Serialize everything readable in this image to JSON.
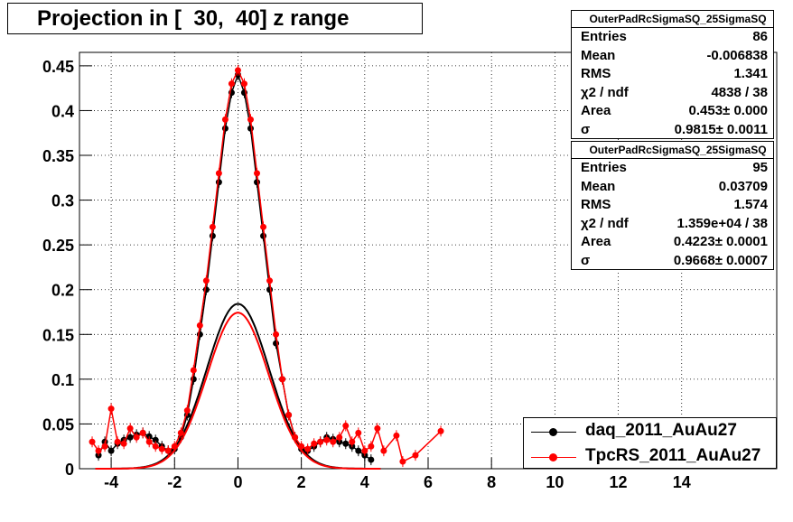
{
  "title": "Projection in [  30,  40] z range",
  "stats_boxes": [
    {
      "name": "OuterPadRcSigmaSQ_25SigmaSQ",
      "rows": [
        {
          "key": "Entries",
          "value": "86"
        },
        {
          "key": "Mean",
          "value": "-0.006838"
        },
        {
          "key": "RMS",
          "value": "1.341"
        },
        {
          "key": "χ2 / ndf",
          "value": "4838 / 38"
        },
        {
          "key": "Area",
          "value": "0.453± 0.000"
        },
        {
          "key": "σ",
          "value": "0.9815± 0.0011"
        }
      ]
    },
    {
      "name": "OuterPadRcSigmaSQ_25SigmaSQ",
      "rows": [
        {
          "key": "Entries",
          "value": "95"
        },
        {
          "key": "Mean",
          "value": "0.03709"
        },
        {
          "key": "RMS",
          "value": "1.574"
        },
        {
          "key": "χ2 / ndf",
          "value": "1.359e+04 / 38"
        },
        {
          "key": "Area",
          "value": "0.4223± 0.0001"
        },
        {
          "key": "σ",
          "value": "0.9668± 0.0007"
        }
      ]
    }
  ],
  "legend": [
    {
      "label": "daq_2011_AuAu27",
      "color": "#000000"
    },
    {
      "label": "TpcRS_2011_AuAu27",
      "color": "#ff0000"
    }
  ],
  "chart_data": {
    "type": "scatter",
    "title": "Projection in [  30,  40] z range",
    "xlabel": "",
    "ylabel": "",
    "xlim": [
      -5,
      17
    ],
    "ylim": [
      0,
      0.465
    ],
    "grid": true,
    "legend_position": "bottom-right",
    "x_ticks": [
      -4,
      -2,
      0,
      2,
      4,
      6,
      8,
      10,
      12,
      14
    ],
    "y_ticks": [
      0,
      0.05,
      0.1,
      0.15,
      0.2,
      0.25,
      0.3,
      0.35,
      0.4,
      0.45
    ],
    "x_tick_labels": [
      "-4",
      "-2",
      "0",
      "2",
      "4",
      "6",
      "8",
      "10",
      "12",
      "14"
    ],
    "y_tick_labels": [
      "0",
      "0.05",
      "0.1",
      "0.15",
      "0.2",
      "0.25",
      "0.3",
      "0.35",
      "0.4",
      "0.45"
    ],
    "series": [
      {
        "name": "daq_2011_AuAu27",
        "color": "#000000",
        "x": [
          -4.4,
          -4.2,
          -4.0,
          -3.8,
          -3.6,
          -3.4,
          -3.2,
          -3.0,
          -2.8,
          -2.6,
          -2.4,
          -2.2,
          -2.0,
          -1.8,
          -1.6,
          -1.4,
          -1.2,
          -1.0,
          -0.8,
          -0.6,
          -0.4,
          -0.2,
          0.0,
          0.2,
          0.4,
          0.6,
          0.8,
          1.0,
          1.2,
          1.4,
          1.6,
          1.8,
          2.0,
          2.2,
          2.4,
          2.6,
          2.8,
          3.0,
          3.2,
          3.4,
          3.6,
          3.8,
          4.0,
          4.2
        ],
        "y": [
          0.015,
          0.03,
          0.02,
          0.028,
          0.032,
          0.035,
          0.038,
          0.04,
          0.036,
          0.032,
          0.025,
          0.02,
          0.022,
          0.035,
          0.06,
          0.1,
          0.15,
          0.2,
          0.26,
          0.32,
          0.38,
          0.42,
          0.44,
          0.42,
          0.38,
          0.32,
          0.26,
          0.2,
          0.14,
          0.1,
          0.06,
          0.035,
          0.022,
          0.02,
          0.025,
          0.03,
          0.035,
          0.033,
          0.03,
          0.028,
          0.025,
          0.02,
          0.015,
          0.01
        ],
        "fit_sigma": 0.9815,
        "fit_area": 0.453
      },
      {
        "name": "TpcRS_2011_AuAu27",
        "color": "#ff0000",
        "x": [
          -4.6,
          -4.4,
          -4.2,
          -4.0,
          -3.8,
          -3.6,
          -3.4,
          -3.2,
          -3.0,
          -2.8,
          -2.6,
          -2.4,
          -2.2,
          -2.0,
          -1.8,
          -1.6,
          -1.4,
          -1.2,
          -1.0,
          -0.8,
          -0.6,
          -0.4,
          -0.2,
          0.0,
          0.2,
          0.4,
          0.6,
          0.8,
          1.0,
          1.2,
          1.4,
          1.6,
          1.8,
          2.0,
          2.2,
          2.4,
          2.6,
          2.8,
          3.0,
          3.2,
          3.4,
          3.6,
          3.8,
          4.0,
          4.2,
          4.4,
          4.6,
          5.0,
          5.2,
          5.6,
          6.4
        ],
        "y": [
          0.03,
          0.02,
          0.025,
          0.067,
          0.03,
          0.028,
          0.045,
          0.035,
          0.04,
          0.03,
          0.025,
          0.022,
          0.02,
          0.025,
          0.04,
          0.065,
          0.11,
          0.16,
          0.21,
          0.27,
          0.33,
          0.39,
          0.43,
          0.445,
          0.43,
          0.39,
          0.33,
          0.27,
          0.21,
          0.15,
          0.1,
          0.06,
          0.035,
          0.025,
          0.022,
          0.028,
          0.03,
          0.032,
          0.03,
          0.035,
          0.048,
          0.03,
          0.04,
          0.02,
          0.025,
          0.045,
          0.02,
          0.037,
          0.008,
          0.015,
          0.042
        ],
        "fit_sigma": 0.9668,
        "fit_area": 0.4223
      }
    ]
  }
}
